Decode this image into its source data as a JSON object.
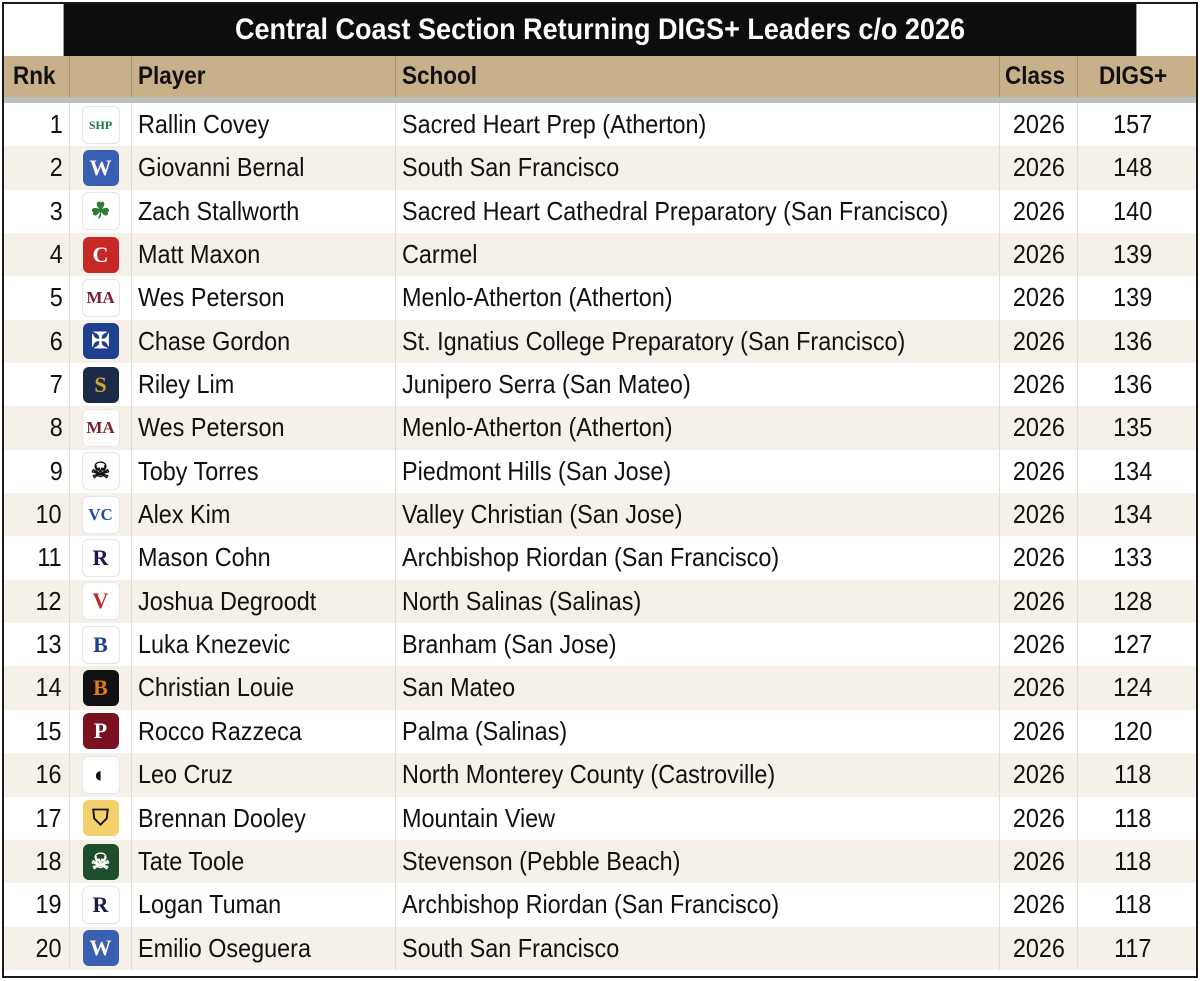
{
  "title": "Central Coast Section Returning DIGS+ Leaders c/o 2026",
  "headers": {
    "rank": "Rnk",
    "logo": "",
    "player": "Player",
    "school": "School",
    "class": "Class",
    "digs": "DIGS+"
  },
  "rows": [
    {
      "rank": "1",
      "player": "Rallin Covey",
      "school": "Sacred Heart Prep (Atherton)",
      "class": "2026",
      "digs": "157",
      "logo": {
        "glyph": "SHP",
        "fg": "#1f7a3a",
        "bg": "#ffffff",
        "icon": "sacred-heart-prep-logo-icon"
      }
    },
    {
      "rank": "2",
      "player": "Giovanni Bernal",
      "school": "South San Francisco",
      "class": "2026",
      "digs": "148",
      "logo": {
        "glyph": "W",
        "fg": "#ffffff",
        "bg": "#3a5fb0",
        "icon": "south-sf-warriors-logo-icon"
      }
    },
    {
      "rank": "3",
      "player": "Zach Stallworth",
      "school": "Sacred Heart Cathedral Preparatory (San Francisco)",
      "class": "2026",
      "digs": "140",
      "logo": {
        "glyph": "☘",
        "fg": "#2e7d32",
        "bg": "#ffffff",
        "icon": "shc-irish-logo-icon"
      }
    },
    {
      "rank": "4",
      "player": "Matt Maxon",
      "school": "Carmel",
      "class": "2026",
      "digs": "139",
      "logo": {
        "glyph": "C",
        "fg": "#ffffff",
        "bg": "#c62828",
        "icon": "carmel-logo-icon"
      }
    },
    {
      "rank": "5",
      "player": "Wes Peterson",
      "school": "Menlo-Atherton (Atherton)",
      "class": "2026",
      "digs": "139",
      "logo": {
        "glyph": "MA",
        "fg": "#7b1e2b",
        "bg": "#ffffff",
        "icon": "menlo-atherton-logo-icon"
      }
    },
    {
      "rank": "6",
      "player": "Chase Gordon",
      "school": "St. Ignatius College Preparatory (San Francisco)",
      "class": "2026",
      "digs": "136",
      "logo": {
        "glyph": "✠",
        "fg": "#ffffff",
        "bg": "#1f3f8f",
        "icon": "st-ignatius-seal-icon"
      }
    },
    {
      "rank": "7",
      "player": "Riley Lim",
      "school": "Junipero Serra (San Mateo)",
      "class": "2026",
      "digs": "136",
      "logo": {
        "glyph": "S",
        "fg": "#d4a62a",
        "bg": "#1c2a4a",
        "icon": "serra-logo-icon"
      }
    },
    {
      "rank": "8",
      "player": "Wes Peterson",
      "school": "Menlo-Atherton (Atherton)",
      "class": "2026",
      "digs": "135",
      "logo": {
        "glyph": "MA",
        "fg": "#7b1e2b",
        "bg": "#ffffff",
        "icon": "menlo-atherton-logo-icon"
      }
    },
    {
      "rank": "9",
      "player": "Toby Torres",
      "school": "Piedmont Hills (San Jose)",
      "class": "2026",
      "digs": "134",
      "logo": {
        "glyph": "☠",
        "fg": "#111111",
        "bg": "#ffffff",
        "icon": "piedmont-hills-pirate-icon"
      }
    },
    {
      "rank": "10",
      "player": "Alex Kim",
      "school": "Valley Christian (San Jose)",
      "class": "2026",
      "digs": "134",
      "logo": {
        "glyph": "VC",
        "fg": "#1f4fa8",
        "bg": "#ffffff",
        "icon": "valley-christian-logo-icon"
      }
    },
    {
      "rank": "11",
      "player": "Mason Cohn",
      "school": "Archbishop Riordan (San Francisco)",
      "class": "2026",
      "digs": "133",
      "logo": {
        "glyph": "R",
        "fg": "#1a1a4e",
        "bg": "#ffffff",
        "icon": "riordan-logo-icon"
      }
    },
    {
      "rank": "12",
      "player": "Joshua Degroodt",
      "school": "North Salinas (Salinas)",
      "class": "2026",
      "digs": "128",
      "logo": {
        "glyph": "V",
        "fg": "#c62828",
        "bg": "#ffffff",
        "icon": "north-salinas-viking-icon"
      }
    },
    {
      "rank": "13",
      "player": "Luka Knezevic",
      "school": "Branham (San Jose)",
      "class": "2026",
      "digs": "127",
      "logo": {
        "glyph": "B",
        "fg": "#1f3f8f",
        "bg": "#ffffff",
        "icon": "branham-bruin-icon"
      }
    },
    {
      "rank": "14",
      "player": "Christian Louie",
      "school": "San Mateo",
      "class": "2026",
      "digs": "124",
      "logo": {
        "glyph": "B",
        "fg": "#e07b1a",
        "bg": "#111111",
        "icon": "san-mateo-bearcats-icon"
      }
    },
    {
      "rank": "15",
      "player": "Rocco Razzeca",
      "school": "Palma (Salinas)",
      "class": "2026",
      "digs": "120",
      "logo": {
        "glyph": "P",
        "fg": "#ffffff",
        "bg": "#7a1020",
        "icon": "palma-logo-icon"
      }
    },
    {
      "rank": "16",
      "player": "Leo Cruz",
      "school": "North Monterey County (Castroville)",
      "class": "2026",
      "digs": "118",
      "logo": {
        "glyph": "◐",
        "fg": "#111111",
        "bg": "#ffffff",
        "icon": "north-monterey-county-condor-icon"
      }
    },
    {
      "rank": "17",
      "player": "Brennan Dooley",
      "school": "Mountain View",
      "class": "2026",
      "digs": "118",
      "logo": {
        "glyph": "⛉",
        "fg": "#111111",
        "bg": "#f2d06b",
        "icon": "mountain-view-spartan-icon"
      }
    },
    {
      "rank": "18",
      "player": "Tate Toole",
      "school": "Stevenson (Pebble Beach)",
      "class": "2026",
      "digs": "118",
      "logo": {
        "glyph": "☠",
        "fg": "#ffffff",
        "bg": "#1e4d2b",
        "icon": "stevenson-pirate-flag-icon"
      }
    },
    {
      "rank": "19",
      "player": "Logan Tuman",
      "school": "Archbishop Riordan (San Francisco)",
      "class": "2026",
      "digs": "118",
      "logo": {
        "glyph": "R",
        "fg": "#1a1a4e",
        "bg": "#ffffff",
        "icon": "riordan-logo-icon"
      }
    },
    {
      "rank": "20",
      "player": "Emilio Oseguera",
      "school": "South San Francisco",
      "class": "2026",
      "digs": "117",
      "logo": {
        "glyph": "W",
        "fg": "#ffffff",
        "bg": "#3a5fb0",
        "icon": "south-sf-warriors-logo-icon"
      }
    }
  ],
  "colors": {
    "title_bg": "#0d0d0d",
    "header_bg": "#c8b08a",
    "stripe": "#f6f1e8"
  }
}
